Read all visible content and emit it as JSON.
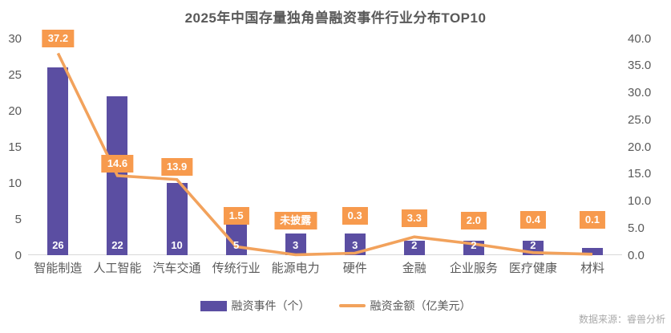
{
  "title": "2025年中国存量独角兽融资事件行业分布TOP10",
  "source": "数据来源：睿兽分析",
  "legend": {
    "bar_label": "融资事件（个）",
    "line_label": "融资金额（亿美元）"
  },
  "colors": {
    "bar": "#5B4EA2",
    "line": "#F2A25C",
    "label_bg": "#F79A4D",
    "title_text": "#595959",
    "axis_text": "#595959",
    "source_text": "#A9A9A9",
    "baseline": "#D9D9D9"
  },
  "chart_data": {
    "type": "bar",
    "subtype": "combo bar + line, dual axis",
    "title": "2025年中国存量独角兽融资事件行业分布TOP10",
    "categories": [
      "智能制造",
      "人工智能",
      "汽车交通",
      "传统行业",
      "能源电力",
      "硬件",
      "金融",
      "企业服务",
      "医疗健康",
      "材料"
    ],
    "series": [
      {
        "name": "融资事件（个）",
        "chart": "bar",
        "axis": "left",
        "values": [
          26,
          22,
          10,
          5,
          3,
          3,
          2,
          2,
          2,
          1
        ],
        "bar_labels": [
          "26",
          "22",
          "10",
          "5",
          "3",
          "3",
          "2",
          "2",
          "2",
          ""
        ]
      },
      {
        "name": "融资金额（亿美元）",
        "chart": "line",
        "axis": "right",
        "values": [
          37.2,
          14.6,
          13.9,
          1.5,
          null,
          0.3,
          3.3,
          2.0,
          0.4,
          0.1
        ],
        "point_labels": [
          "37.2",
          "14.6",
          "13.9",
          "1.5",
          "未披露",
          "0.3",
          "3.3",
          "2.0",
          "0.4",
          "0.1"
        ]
      }
    ],
    "left_axis": {
      "min": 0,
      "max": 30,
      "step": 5,
      "tick_labels": [
        "0",
        "5",
        "10",
        "15",
        "20",
        "25",
        "30"
      ]
    },
    "right_axis": {
      "min": 0,
      "max": 40,
      "step": 5,
      "tick_labels": [
        "0.0",
        "5.0",
        "10.0",
        "15.0",
        "20.0",
        "25.0",
        "30.0",
        "35.0",
        "40.0"
      ]
    },
    "grid": false,
    "legend_position": "bottom"
  }
}
